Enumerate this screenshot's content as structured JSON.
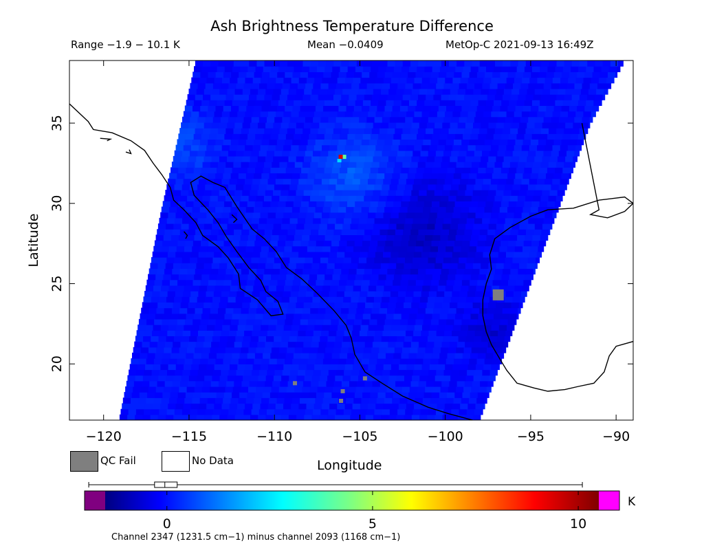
{
  "header": {
    "title": "Ash Brightness Temperature Difference",
    "range": "Range −1.9 − 10.1 K",
    "mean": "Mean −0.0409",
    "satellite_time": "MetOp-C 2021-09-13 16:49Z"
  },
  "legend": {
    "qc_fail": "QC Fail",
    "no_data": "No Data",
    "qc_color": "#7f7f7f"
  },
  "chart_data": {
    "type": "heatmap",
    "title": "Ash Brightness Temperature Difference",
    "xlabel": "Longitude",
    "ylabel": "Latitude",
    "xlim": [
      -122,
      -89
    ],
    "ylim": [
      16.5,
      38.9
    ],
    "xticks": [
      -120,
      -115,
      -110,
      -105,
      -100,
      -95,
      -90
    ],
    "yticks": [
      20,
      25,
      30,
      35
    ],
    "xtick_labels": [
      "−120",
      "−115",
      "−110",
      "−105",
      "−100",
      "−95",
      "−90"
    ],
    "ytick_labels": [
      "20",
      "25",
      "30",
      "35"
    ],
    "units": "K",
    "range_min": -1.9,
    "range_max": 10.1,
    "mean": -0.0409,
    "swath_edges": {
      "west": [
        [
          -119.1,
          16.5
        ],
        [
          -116.6,
          29.7
        ],
        [
          -114.6,
          38.9
        ]
      ],
      "east": [
        [
          -98.0,
          16.5
        ],
        [
          -91.5,
          35.0
        ],
        [
          -89.5,
          38.9
        ]
      ]
    },
    "hotspot": {
      "lon": -106.0,
      "lat": 32.9,
      "value": 9.5
    },
    "qc_fail_pixels": [
      [
        -96.9,
        24.3
      ],
      [
        -108.8,
        18.8
      ],
      [
        -106.0,
        18.3
      ],
      [
        -106.1,
        17.7
      ],
      [
        -104.7,
        19.1
      ]
    ],
    "colorbar": {
      "min": -1.5,
      "max": 10.5,
      "ticks": [
        0,
        5,
        10
      ],
      "tick_labels": [
        "0",
        "5",
        "10"
      ],
      "underflow_color": "#800080",
      "overflow_color": "#ff00ff",
      "range_marker": {
        "q1": -0.3,
        "median": -0.05,
        "q3": 0.25,
        "min": -1.9,
        "max": 10.1
      }
    }
  },
  "footnote": "Channel 2347 (1231.5 cm−1) minus channel 2093 (1168 cm−1)",
  "colorbar_unit": "K"
}
